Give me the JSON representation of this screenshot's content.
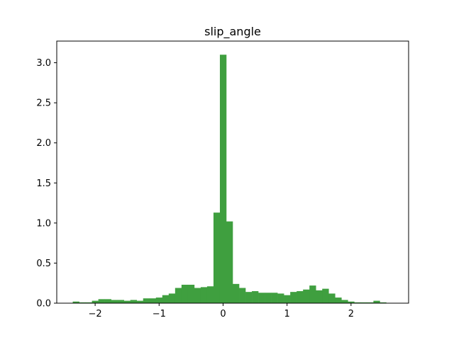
{
  "chart_data": {
    "type": "bar",
    "title": "slip_angle",
    "xlabel": "",
    "ylabel": "",
    "xlim": [
      -2.6,
      2.9
    ],
    "ylim": [
      0,
      3.27
    ],
    "x_ticks": [
      -2,
      -1,
      0,
      1,
      2
    ],
    "x_tick_labels": [
      "−2",
      "−1",
      "0",
      "1",
      "2"
    ],
    "y_ticks": [
      0.0,
      0.5,
      1.0,
      1.5,
      2.0,
      2.5,
      3.0
    ],
    "y_tick_labels": [
      "0.0",
      "0.5",
      "1.0",
      "1.5",
      "2.0",
      "2.5",
      "3.0"
    ],
    "grid": false,
    "legend": "none",
    "bar_color": "#3f9f3f",
    "bin_start": -2.35,
    "bin_width": 0.1,
    "values": [
      0.02,
      0.01,
      0.01,
      0.03,
      0.05,
      0.05,
      0.04,
      0.04,
      0.03,
      0.04,
      0.03,
      0.06,
      0.06,
      0.07,
      0.1,
      0.12,
      0.19,
      0.23,
      0.23,
      0.19,
      0.2,
      0.21,
      1.13,
      3.1,
      1.02,
      0.24,
      0.19,
      0.14,
      0.15,
      0.13,
      0.13,
      0.13,
      0.12,
      0.1,
      0.14,
      0.15,
      0.17,
      0.22,
      0.16,
      0.18,
      0.12,
      0.07,
      0.04,
      0.02,
      0.01,
      0.01,
      0.01,
      0.03,
      0.01
    ]
  }
}
